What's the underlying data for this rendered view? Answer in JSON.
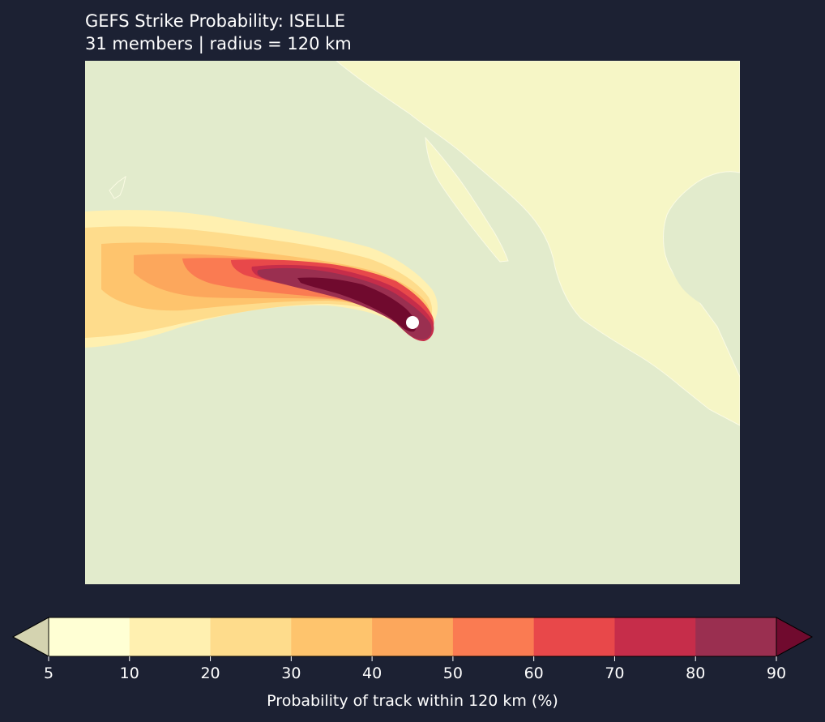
{
  "title": {
    "line1": "GEFS Strike Probability: ISELLE",
    "line2": "31 members  |  radius = 120 km"
  },
  "colorbar": {
    "label": "Probability of track within 120 km (%)",
    "levels": [
      5,
      10,
      20,
      30,
      40,
      50,
      60,
      70,
      80,
      90
    ],
    "tick_labels": [
      "5",
      "10",
      "20",
      "30",
      "40",
      "50",
      "60",
      "70",
      "80",
      "90"
    ],
    "colors": [
      "#ffffd4",
      "#fff0b0",
      "#fedc8c",
      "#fec46d",
      "#fca75c",
      "#fa7b52",
      "#e8484a",
      "#c62d4a",
      "#9a2f50"
    ],
    "under_color": "#d4d3b0",
    "over_color": "#700a2e",
    "extend": "both"
  },
  "map": {
    "ocean_color": "#e2ebcc",
    "land_color": "#f6f6c6",
    "storm_marker_color": "#ffffff"
  }
}
